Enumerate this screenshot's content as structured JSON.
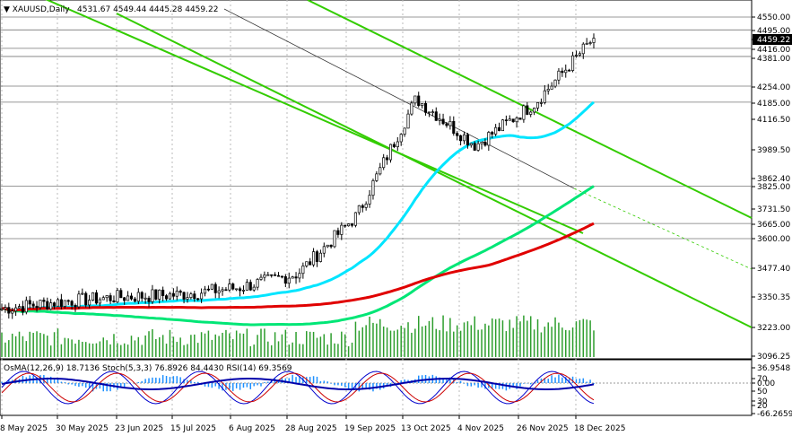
{
  "header": {
    "symbol": "XAUUSD,Daily",
    "ohlc": "4531.67 4549.44 4445.28 4459.22"
  },
  "price_axis": {
    "ticks": [
      "4550.00",
      "4495.00",
      "4459.22",
      "4416.00",
      "4381.00",
      "4254.00",
      "4185.00",
      "4116.50",
      "3989.50",
      "3862.40",
      "3825.00",
      "3731.50",
      "3665.00",
      "3600.00",
      "3477.40",
      "3350.35",
      "3223.00",
      "3096.25"
    ],
    "current_price": "4459.22"
  },
  "date_axis": {
    "labels": [
      "8 May 2025",
      "30 May 2025",
      "23 Jun 2025",
      "15 Jul 2025",
      "6 Aug 2025",
      "28 Aug 2025",
      "19 Sep 2025",
      "13 Oct 2025",
      "4 Nov 2025",
      "26 Nov 2025",
      "18 Dec 2025"
    ]
  },
  "indicator_panel": {
    "header": "OsMA(12,26,9) 18.7136  Stoch(5,3,3) 76.8926 84.4430  RSI(14) 69.3569",
    "ticks": [
      "36.9548",
      "70",
      "0.00",
      "50",
      "30",
      "20",
      "-66.2659"
    ]
  },
  "colors": {
    "background": "#ffffff",
    "candles": "#000000",
    "ema_fast": "#00e5ff",
    "ema_mid": "#00e676",
    "ema_slow": "#e00000",
    "channel": "#33cc00",
    "volume": "#2e9e2e",
    "osma": "#1e90ff",
    "stoch_main": "#0000cc",
    "stoch_signal": "#cc0000",
    "rsi": "#0000aa"
  },
  "chart_data": {
    "type": "candlestick",
    "symbol": "XAUUSD",
    "timeframe": "Daily",
    "x": [
      "8 May 2025",
      "30 May 2025",
      "23 Jun 2025",
      "15 Jul 2025",
      "6 Aug 2025",
      "28 Aug 2025",
      "19 Sep 2025",
      "13 Oct 2025",
      "4 Nov 2025",
      "26 Nov 2025",
      "18 Dec 2025"
    ],
    "close_approx": [
      3300,
      3330,
      3350,
      3360,
      3390,
      3450,
      3700,
      4200,
      4000,
      4180,
      4459.22
    ],
    "ylim": [
      3096.25,
      4560
    ],
    "last": {
      "open": 4531.67,
      "high": 4549.44,
      "low": 4445.28,
      "close": 4459.22
    },
    "horizontal_levels": [
      4550.0,
      4495.0,
      4416.0,
      4381.0,
      4254.0,
      4185.0,
      3825.0,
      3665.0,
      3600.0
    ],
    "moving_averages": [
      {
        "color": "#00e5ff",
        "last": 4185
      },
      {
        "color": "#00e676",
        "last": 3825
      },
      {
        "color": "#e00000",
        "last": 3665
      }
    ]
  }
}
